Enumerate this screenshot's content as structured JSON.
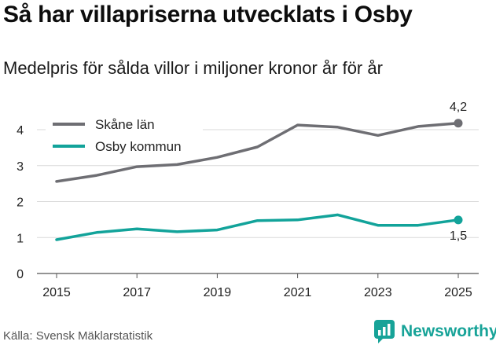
{
  "title": "Så har villapriserna utvecklats i Osby",
  "subtitle": "Medelpris för sålda villor i miljoner kronor år för år",
  "source": "Källa: Svensk Mäklarstatistik",
  "brand": "Newsworthy",
  "colors": {
    "skane": "#6e6e73",
    "osby": "#12a39a",
    "grid": "#d9d9d9",
    "brand": "#17a398"
  },
  "chart_data": {
    "type": "line",
    "title": "Så har villapriserna utvecklats i Osby",
    "ylabel": "",
    "xlabel": "",
    "ylim": [
      0,
      4.5
    ],
    "yticks": [
      0,
      1,
      2,
      3,
      4
    ],
    "xticks": [
      2015,
      2017,
      2019,
      2021,
      2023,
      2025
    ],
    "x": [
      2015,
      2016,
      2017,
      2018,
      2019,
      2020,
      2021,
      2022,
      2023,
      2024,
      2025
    ],
    "legend_position": "top-left",
    "series": [
      {
        "name": "Skåne län",
        "color": "#6e6e73",
        "values": [
          2.56,
          2.73,
          2.97,
          3.03,
          3.23,
          3.52,
          4.13,
          4.07,
          3.84,
          4.09,
          4.18
        ],
        "end_label": "4,2"
      },
      {
        "name": "Osby kommun",
        "color": "#12a39a",
        "values": [
          0.94,
          1.14,
          1.24,
          1.16,
          1.21,
          1.47,
          1.49,
          1.63,
          1.34,
          1.34,
          1.49
        ],
        "end_label": "1,5"
      }
    ]
  }
}
